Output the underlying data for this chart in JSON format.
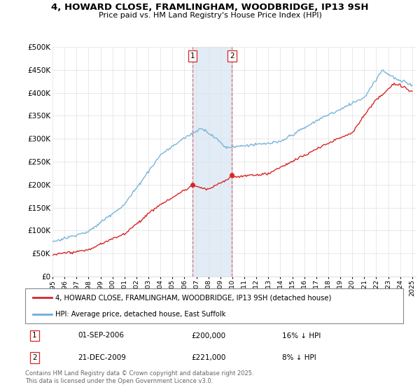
{
  "title_line1": "4, HOWARD CLOSE, FRAMLINGHAM, WOODBRIDGE, IP13 9SH",
  "title_line2": "Price paid vs. HM Land Registry's House Price Index (HPI)",
  "ylim": [
    0,
    500000
  ],
  "yticks": [
    0,
    50000,
    100000,
    150000,
    200000,
    250000,
    300000,
    350000,
    400000,
    450000,
    500000
  ],
  "ytick_labels": [
    "£0",
    "£50K",
    "£100K",
    "£150K",
    "£200K",
    "£250K",
    "£300K",
    "£350K",
    "£400K",
    "£450K",
    "£500K"
  ],
  "hpi_color": "#6baed6",
  "property_color": "#d62728",
  "transaction1_date": 2006.67,
  "transaction1_price": 200000,
  "transaction2_date": 2009.97,
  "transaction2_price": 221000,
  "vline_color": "#d62728",
  "shade_color": "#c6dbef",
  "shade_alpha": 0.5,
  "legend_label_property": "4, HOWARD CLOSE, FRAMLINGHAM, WOODBRIDGE, IP13 9SH (detached house)",
  "legend_label_hpi": "HPI: Average price, detached house, East Suffolk",
  "table_row1": [
    "1",
    "01-SEP-2006",
    "£200,000",
    "16% ↓ HPI"
  ],
  "table_row2": [
    "2",
    "21-DEC-2009",
    "£221,000",
    "8% ↓ HPI"
  ],
  "footnote": "Contains HM Land Registry data © Crown copyright and database right 2025.\nThis data is licensed under the Open Government Licence v3.0.",
  "background_color": "#ffffff",
  "grid_color": "#e0e0e0"
}
